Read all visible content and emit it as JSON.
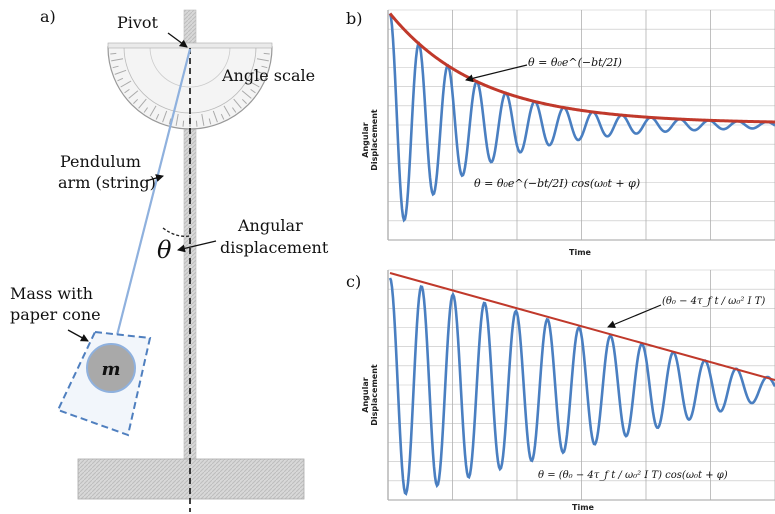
{
  "panel_a": {
    "label": "a)",
    "pivot_label": "Pivot",
    "angle_scale_label": "Angle scale",
    "arm_label_line1": "Pendulum",
    "arm_label_line2": "arm (string)",
    "angular_label_line1": "Angular",
    "angular_label_line2": "displacement",
    "theta_symbol": "θ",
    "mass_label_line1": "Mass with",
    "mass_label_line2": "paper cone",
    "mass_symbol": "m"
  },
  "panel_b": {
    "label": "b)",
    "ylabel_line1": "Angular",
    "ylabel_line2": "Displacement",
    "xlabel": "Time",
    "envelope_formula": "θ = θ₀e^(−bt/2I)",
    "signal_formula": "θ = θ₀e^(−bt/2I) cos(ω₀t + φ)",
    "envelope_type": "exponential decay",
    "colors": {
      "signal": "#4a7fc1",
      "envelope": "#c0392b",
      "grid": "#b0b0b0"
    }
  },
  "panel_c": {
    "label": "c)",
    "ylabel_line1": "Angular",
    "ylabel_line2": "Displacement",
    "xlabel": "Time",
    "envelope_formula": "(θ₀ − 4τ_f t / ω₀² I T)",
    "signal_formula": "θ = (θ₀ − 4τ_f t / ω₀² I T) cos(ω₀t + φ)",
    "envelope_type": "linear decay",
    "colors": {
      "signal": "#4a7fc1",
      "envelope": "#c0392b",
      "grid": "#b0b0b0"
    }
  }
}
